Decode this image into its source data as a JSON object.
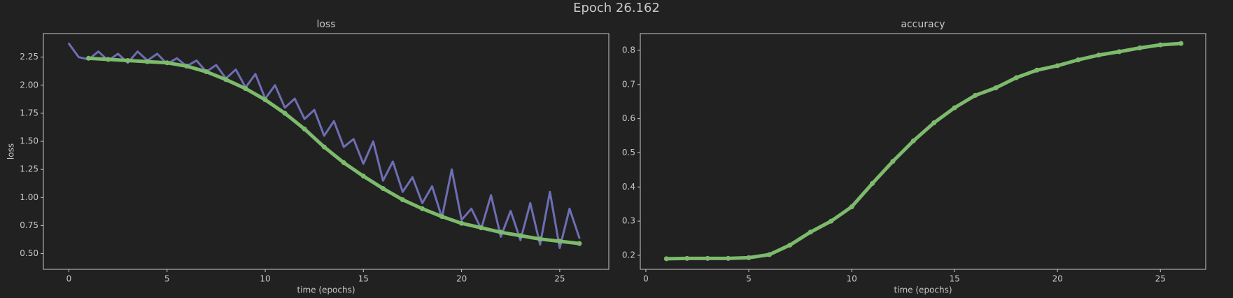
{
  "title": "Epoch 26.162",
  "chart_data": [
    {
      "type": "line",
      "title": "loss",
      "xlabel": "time (epochs)",
      "ylabel": "loss",
      "xlim": [
        -1.3,
        27.5
      ],
      "xticks": [
        0,
        5,
        10,
        15,
        20,
        25
      ],
      "ylim": [
        0.36,
        2.46
      ],
      "yticks": [
        {
          "value": 0.5,
          "label": "0.50"
        },
        0.75,
        {
          "value": 1,
          "label": "1.00"
        },
        1.25,
        {
          "value": 1.5,
          "label": "1.50"
        },
        1.75,
        {
          "value": 2,
          "label": "2.00"
        },
        2.25
      ],
      "series": [
        {
          "color": "#6e6eb4",
          "markers": false,
          "x": [
            0,
            0.5,
            1,
            1.5,
            2,
            2.5,
            3,
            3.5,
            4,
            4.5,
            5,
            5.5,
            6,
            6.5,
            7,
            7.5,
            8,
            8.5,
            9,
            9.5,
            10,
            10.5,
            11,
            11.5,
            12,
            12.5,
            13,
            13.5,
            14,
            14.5,
            15,
            15.5,
            16,
            16.5,
            17,
            17.5,
            18,
            18.5,
            19,
            19.5,
            20,
            20.5,
            21,
            21.5,
            22,
            22.5,
            23,
            23.5,
            24,
            24.5,
            25,
            25.5,
            26
          ],
          "values": [
            2.37,
            2.25,
            2.23,
            2.3,
            2.22,
            2.28,
            2.2,
            2.3,
            2.22,
            2.28,
            2.19,
            2.24,
            2.17,
            2.22,
            2.12,
            2.18,
            2.06,
            2.14,
            1.98,
            2.1,
            1.88,
            2.0,
            1.8,
            1.88,
            1.7,
            1.78,
            1.55,
            1.68,
            1.45,
            1.52,
            1.3,
            1.5,
            1.15,
            1.32,
            1.05,
            1.18,
            0.95,
            1.1,
            0.82,
            1.25,
            0.8,
            0.9,
            0.72,
            1.02,
            0.65,
            0.88,
            0.62,
            0.95,
            0.58,
            1.05,
            0.55,
            0.9,
            0.64
          ]
        },
        {
          "color": "#7dbb6c",
          "markers": true,
          "x": [
            1,
            2,
            3,
            4,
            5,
            6,
            7,
            8,
            9,
            10,
            11,
            12,
            13,
            14,
            15,
            16,
            17,
            18,
            19,
            20,
            21,
            22,
            23,
            24,
            25,
            26
          ],
          "values": [
            2.24,
            2.23,
            2.22,
            2.21,
            2.2,
            2.17,
            2.12,
            2.05,
            1.97,
            1.87,
            1.75,
            1.61,
            1.45,
            1.31,
            1.19,
            1.08,
            0.98,
            0.9,
            0.83,
            0.77,
            0.73,
            0.69,
            0.66,
            0.63,
            0.61,
            0.59
          ]
        }
      ]
    },
    {
      "type": "line",
      "title": "accuracy",
      "xlabel": "time (epochs)",
      "xlim": [
        -0.27,
        27.2
      ],
      "xticks": [
        0,
        5,
        10,
        15,
        20,
        25
      ],
      "ylim": [
        0.159,
        0.849
      ],
      "yticks": [
        0.2,
        0.3,
        0.4,
        0.5,
        0.6,
        0.7,
        0.8
      ],
      "series": [
        {
          "color": "#7dbb6c",
          "markers": true,
          "x": [
            1,
            2,
            3,
            4,
            5,
            6,
            7,
            8,
            9,
            10,
            11,
            12,
            13,
            14,
            15,
            16,
            17,
            18,
            19,
            20,
            21,
            22,
            23,
            24,
            25,
            26
          ],
          "values": [
            0.19,
            0.191,
            0.191,
            0.191,
            0.193,
            0.202,
            0.23,
            0.268,
            0.3,
            0.342,
            0.41,
            0.475,
            0.535,
            0.588,
            0.632,
            0.668,
            0.69,
            0.72,
            0.742,
            0.755,
            0.772,
            0.786,
            0.796,
            0.807,
            0.816,
            0.82
          ]
        }
      ]
    }
  ]
}
